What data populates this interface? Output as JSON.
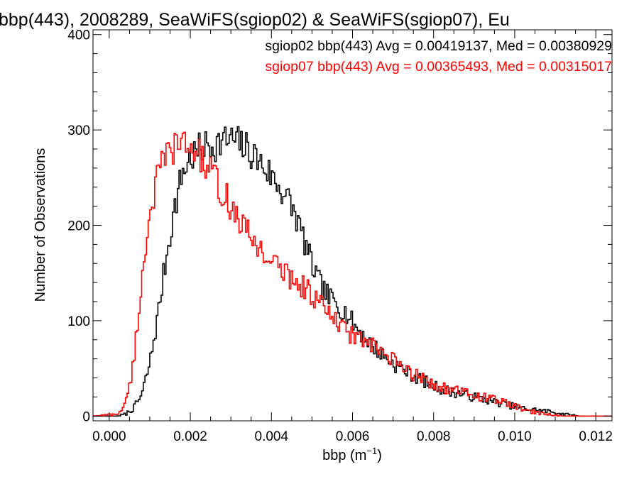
{
  "chart_data": {
    "type": "line",
    "title": "bbp(443), 2008289, SeaWiFS(sgiop02) & SeaWiFS(sgiop07), Eu",
    "xlabel": "bbp (m",
    "xlabel_exp": "−1",
    "xlabel_end": ")",
    "ylabel": "Number of Observations",
    "xlim": [
      -0.0004,
      0.0124
    ],
    "ylim": [
      -5,
      405
    ],
    "xticks": [
      0.0,
      0.002,
      0.004,
      0.006,
      0.008,
      0.01,
      0.012
    ],
    "xtick_labels": [
      "0.000",
      "0.002",
      "0.004",
      "0.006",
      "0.008",
      "0.010",
      "0.012"
    ],
    "yticks": [
      0,
      100,
      200,
      300,
      400
    ],
    "ytick_labels": [
      "0",
      "100",
      "200",
      "300",
      "400"
    ],
    "bin_width": 4e-05,
    "grid": false,
    "legend_position": "top-right",
    "legend": [
      "sgiop02 bbp(443) Avg = 0.00419137, Med = 0.00380929",
      "sgiop07 bbp(443) Avg = 0.00365493, Med = 0.00315017"
    ],
    "series": [
      {
        "name": "sgiop02 bbp(443)",
        "color": "#000000",
        "x": [
          -0.0004,
          0.0002,
          0.0004,
          0.0006,
          0.0008,
          0.001,
          0.0012,
          0.0014,
          0.0016,
          0.0018,
          0.002,
          0.0022,
          0.0024,
          0.0026,
          0.0028,
          0.003,
          0.0032,
          0.0034,
          0.0036,
          0.0038,
          0.004,
          0.0042,
          0.0044,
          0.0046,
          0.0048,
          0.005,
          0.0052,
          0.0054,
          0.0056,
          0.0058,
          0.006,
          0.0062,
          0.0064,
          0.0066,
          0.0068,
          0.007,
          0.0072,
          0.0074,
          0.0076,
          0.0078,
          0.008,
          0.0082,
          0.0084,
          0.0086,
          0.0088,
          0.009,
          0.0092,
          0.0094,
          0.0096,
          0.0098,
          0.01,
          0.0102,
          0.0104,
          0.0106,
          0.0108,
          0.011,
          0.0112,
          0.0114,
          0.0116,
          0.0118,
          0.0124
        ],
        "y": [
          0,
          0,
          2,
          8,
          22,
          55,
          105,
          165,
          215,
          255,
          270,
          278,
          283,
          285,
          288,
          290,
          286,
          280,
          272,
          262,
          252,
          240,
          228,
          210,
          185,
          158,
          138,
          125,
          118,
          110,
          98,
          88,
          78,
          70,
          62,
          55,
          50,
          45,
          40,
          36,
          32,
          28,
          26,
          24,
          22,
          20,
          18,
          16,
          14,
          12,
          10,
          8,
          7,
          6,
          5,
          4,
          2,
          1,
          0,
          0,
          0
        ]
      },
      {
        "name": "sgiop07 bbp(443)",
        "color": "#ff0000",
        "x": [
          -0.0004,
          0.0002,
          0.0004,
          0.0006,
          0.0008,
          0.001,
          0.0012,
          0.0014,
          0.0016,
          0.0018,
          0.002,
          0.0022,
          0.0024,
          0.0026,
          0.0028,
          0.003,
          0.0032,
          0.0034,
          0.0036,
          0.0038,
          0.004,
          0.0042,
          0.0044,
          0.0046,
          0.0048,
          0.005,
          0.0052,
          0.0054,
          0.0056,
          0.0058,
          0.006,
          0.0062,
          0.0064,
          0.0066,
          0.0068,
          0.007,
          0.0072,
          0.0074,
          0.0076,
          0.0078,
          0.008,
          0.0082,
          0.0084,
          0.0086,
          0.0088,
          0.009,
          0.0092,
          0.0094,
          0.0096,
          0.0098,
          0.01,
          0.0102,
          0.0104,
          0.0106,
          0.0108,
          0.011,
          0.0112,
          0.0116,
          0.0124
        ],
        "y": [
          0,
          2,
          12,
          55,
          140,
          215,
          250,
          272,
          282,
          285,
          282,
          275,
          262,
          248,
          235,
          220,
          205,
          192,
          182,
          172,
          162,
          155,
          148,
          142,
          135,
          128,
          118,
          108,
          98,
          90,
          85,
          80,
          75,
          70,
          64,
          58,
          52,
          46,
          42,
          38,
          34,
          30,
          28,
          26,
          24,
          22,
          20,
          18,
          16,
          14,
          10,
          7,
          5,
          3,
          2,
          1,
          0,
          0,
          0
        ]
      }
    ]
  }
}
